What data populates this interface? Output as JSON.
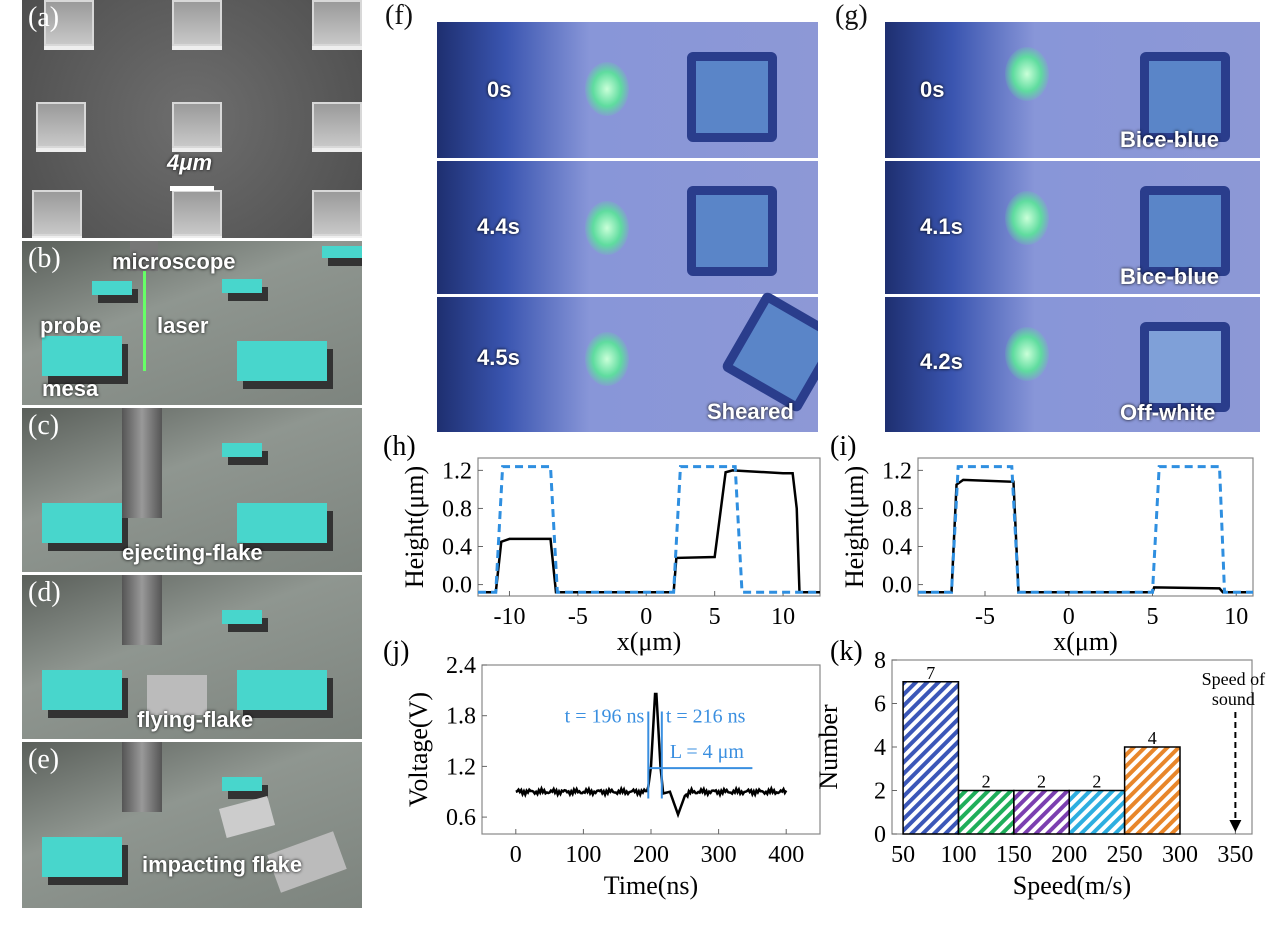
{
  "panels": {
    "a": {
      "label": "(a)",
      "scale_bar": "4μm"
    },
    "b": {
      "label": "(b)",
      "annotations": [
        "microscope",
        "probe",
        "laser",
        "mesa"
      ]
    },
    "c": {
      "label": "(c)",
      "annotation": "ejecting-flake"
    },
    "d": {
      "label": "(d)",
      "annotation": "flying-flake"
    },
    "e": {
      "label": "(e)",
      "annotation": "impacting flake"
    },
    "f": {
      "label": "(f)",
      "frames": [
        {
          "time": "0s",
          "note": ""
        },
        {
          "time": "4.4s",
          "note": ""
        },
        {
          "time": "4.5s",
          "note": "Sheared"
        }
      ]
    },
    "g": {
      "label": "(g)",
      "frames": [
        {
          "time": "0s",
          "note": "Bice-blue"
        },
        {
          "time": "4.1s",
          "note": "Bice-blue"
        },
        {
          "time": "4.2s",
          "note": "Off-white"
        }
      ]
    }
  },
  "colors": {
    "dashed": "#2f8fe0",
    "solid": "#000000",
    "annotation": "#3a8fe0",
    "bars": [
      "#3b57b8",
      "#1fae5a",
      "#7b3fb0",
      "#2eaee0",
      "#e8862a"
    ]
  },
  "chart_data": [
    {
      "id": "h",
      "label": "(h)",
      "type": "line",
      "xlabel": "x(μm)",
      "ylabel": "Height(μm)",
      "xlim": [
        -12.3,
        12.7
      ],
      "ylim": [
        -0.12,
        1.33
      ],
      "xticks": [
        -10,
        -5,
        0,
        5,
        10
      ],
      "yticks": [
        0.0,
        0.4,
        0.8,
        1.2
      ],
      "series": [
        {
          "style": "solid",
          "points": [
            [
              -12.3,
              -0.08
            ],
            [
              -11,
              -0.08
            ],
            [
              -10.6,
              0.45
            ],
            [
              -10,
              0.48
            ],
            [
              -7,
              0.48
            ],
            [
              -6.6,
              -0.08
            ],
            [
              2,
              -0.08
            ],
            [
              2.2,
              0.28
            ],
            [
              5,
              0.29
            ],
            [
              5.8,
              1.18
            ],
            [
              6.3,
              1.2
            ],
            [
              10,
              1.17
            ],
            [
              10.7,
              1.17
            ],
            [
              11,
              0.8
            ],
            [
              11.2,
              -0.08
            ],
            [
              12.7,
              -0.08
            ]
          ]
        },
        {
          "style": "dashed",
          "points": [
            [
              -12.3,
              -0.08
            ],
            [
              -11,
              -0.08
            ],
            [
              -10.5,
              1.24
            ],
            [
              -7,
              1.24
            ],
            [
              -6.5,
              -0.08
            ],
            [
              2,
              -0.08
            ],
            [
              2.5,
              1.24
            ],
            [
              6.5,
              1.24
            ],
            [
              7,
              -0.08
            ],
            [
              12.7,
              -0.08
            ]
          ]
        }
      ]
    },
    {
      "id": "i",
      "label": "(i)",
      "type": "line",
      "xlabel": "x(μm)",
      "ylabel": "Height(μm)",
      "xlim": [
        -9,
        11
      ],
      "ylim": [
        -0.12,
        1.33
      ],
      "xticks": [
        -5,
        0,
        5,
        10
      ],
      "yticks": [
        0.0,
        0.4,
        0.8,
        1.2
      ],
      "series": [
        {
          "style": "solid",
          "points": [
            [
              -9,
              -0.08
            ],
            [
              -7,
              -0.08
            ],
            [
              -6.7,
              1.05
            ],
            [
              -6.3,
              1.1
            ],
            [
              -3.3,
              1.08
            ],
            [
              -3,
              -0.08
            ],
            [
              5,
              -0.08
            ],
            [
              5.1,
              -0.03
            ],
            [
              9,
              -0.04
            ],
            [
              9.2,
              -0.08
            ],
            [
              11,
              -0.08
            ]
          ]
        },
        {
          "style": "dashed",
          "points": [
            [
              -9,
              -0.08
            ],
            [
              -7,
              -0.08
            ],
            [
              -6.6,
              1.24
            ],
            [
              -3.4,
              1.24
            ],
            [
              -3,
              -0.08
            ],
            [
              5,
              -0.08
            ],
            [
              5.4,
              1.24
            ],
            [
              9,
              1.24
            ],
            [
              9.3,
              -0.08
            ],
            [
              11,
              -0.08
            ]
          ]
        }
      ]
    },
    {
      "id": "j",
      "label": "(j)",
      "type": "line",
      "xlabel": "Time(ns)",
      "ylabel": "Voltage(V)",
      "xlim": [
        -50,
        450
      ],
      "ylim": [
        0.4,
        2.4
      ],
      "xticks": [
        0,
        100,
        200,
        300,
        400
      ],
      "yticks": [
        0.6,
        1.2,
        1.8,
        2.4
      ],
      "series": [
        {
          "style": "solid",
          "points": [
            [
              0,
              0.9
            ],
            [
              195,
              0.9
            ],
            [
              200,
              1.2
            ],
            [
              207,
              2.2
            ],
            [
              214,
              1.2
            ],
            [
              218,
              0.88
            ],
            [
              228,
              0.9
            ],
            [
              240,
              0.63
            ],
            [
              250,
              0.85
            ],
            [
              260,
              0.9
            ],
            [
              400,
              0.9
            ]
          ]
        }
      ],
      "annotations": [
        "t = 196 ns",
        "t = 216 ns",
        "L = 4 μm"
      ],
      "markers": [
        196,
        216
      ],
      "L_line_y": 1.18
    },
    {
      "id": "k",
      "label": "(k)",
      "type": "bar",
      "xlabel": "Speed(m/s)",
      "ylabel": "Number",
      "xlim": [
        40,
        365
      ],
      "ylim": [
        0,
        8
      ],
      "xticks": [
        50,
        100,
        150,
        200,
        250,
        300,
        350
      ],
      "yticks": [
        0,
        2,
        4,
        6,
        8
      ],
      "bins": [
        [
          50,
          100
        ],
        [
          100,
          150
        ],
        [
          150,
          200
        ],
        [
          200,
          250
        ],
        [
          250,
          300
        ]
      ],
      "values": [
        7,
        2,
        2,
        2,
        4
      ],
      "annotation": "Speed of sound",
      "arrow_x": 350
    }
  ]
}
